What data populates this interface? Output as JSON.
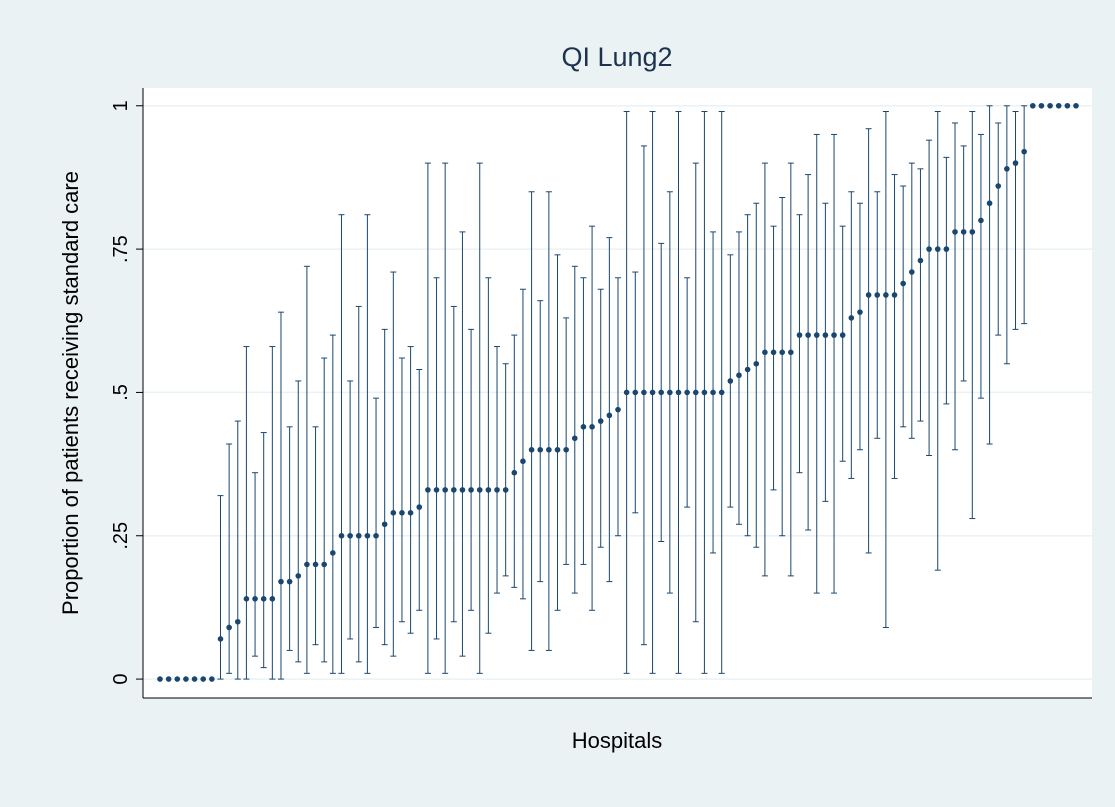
{
  "chart_data": {
    "type": "errorbar",
    "title": "QI Lung2",
    "x_label": "Hospitals",
    "y_label": "Proportion of patients receiving standard care",
    "color": "#1a476f",
    "grid": true,
    "ylim": [
      -0.033,
      1.031
    ],
    "yticks": [
      0,
      {
        "value": 0.25,
        "label": ".25"
      },
      {
        "value": 0.5,
        "label": ".5"
      },
      {
        "value": 0.75,
        "label": ".75"
      },
      1
    ],
    "values": [
      0,
      0,
      0,
      0,
      0,
      0,
      0,
      0.07,
      0.09,
      0.1,
      0.14,
      0.14,
      0.14,
      0.14,
      0.17,
      0.17,
      0.18,
      0.2,
      0.2,
      0.2,
      0.22,
      0.25,
      0.25,
      0.25,
      0.25,
      0.25,
      0.27,
      0.29,
      0.29,
      0.29,
      0.3,
      0.33,
      0.33,
      0.33,
      0.33,
      0.33,
      0.33,
      0.33,
      0.33,
      0.33,
      0.33,
      0.36,
      0.38,
      0.4,
      0.4,
      0.4,
      0.4,
      0.4,
      0.42,
      0.44,
      0.44,
      0.45,
      0.46,
      0.47,
      0.5,
      0.5,
      0.5,
      0.5,
      0.5,
      0.5,
      0.5,
      0.5,
      0.5,
      0.5,
      0.5,
      0.5,
      0.52,
      0.53,
      0.54,
      0.55,
      0.57,
      0.57,
      0.57,
      0.57,
      0.6,
      0.6,
      0.6,
      0.6,
      0.6,
      0.6,
      0.63,
      0.64,
      0.67,
      0.67,
      0.67,
      0.67,
      0.69,
      0.71,
      0.73,
      0.75,
      0.75,
      0.75,
      0.78,
      0.78,
      0.78,
      0.8,
      0.83,
      0.86,
      0.89,
      0.9,
      0.92,
      1,
      1,
      1,
      1,
      1,
      1
    ],
    "lower": [
      null,
      null,
      null,
      null,
      null,
      null,
      null,
      0,
      0.01,
      0,
      0,
      0.04,
      0.02,
      0,
      0,
      0.05,
      0.03,
      0.01,
      0.06,
      0.03,
      0.01,
      0.01,
      0.07,
      0.03,
      0.01,
      0.09,
      0.06,
      0.04,
      0.1,
      0.08,
      0.12,
      0.01,
      0.07,
      0.01,
      0.1,
      0.04,
      0.12,
      0.01,
      0.08,
      0.15,
      0.18,
      0.16,
      0.14,
      0.05,
      0.17,
      0.05,
      0.12,
      0.2,
      0.15,
      0.2,
      0.12,
      0.23,
      0.17,
      0.25,
      0.01,
      0.29,
      0.06,
      0.01,
      0.24,
      0.15,
      0.01,
      0.3,
      0.1,
      0.01,
      0.22,
      0.01,
      0.3,
      0.27,
      0.25,
      0.23,
      0.18,
      0.33,
      0.25,
      0.18,
      0.36,
      0.26,
      0.15,
      0.31,
      0.15,
      0.38,
      0.35,
      0.4,
      0.22,
      0.42,
      0.09,
      0.35,
      0.44,
      0.42,
      0.45,
      0.39,
      0.19,
      0.48,
      0.4,
      0.52,
      0.28,
      0.49,
      0.41,
      0.6,
      0.55,
      0.61,
      0.62,
      null,
      null,
      null,
      null,
      null,
      null
    ],
    "upper": [
      null,
      null,
      null,
      null,
      null,
      null,
      null,
      0.32,
      0.41,
      0.45,
      0.58,
      0.36,
      0.43,
      0.58,
      0.64,
      0.44,
      0.52,
      0.72,
      0.44,
      0.56,
      0.6,
      0.81,
      0.52,
      0.65,
      0.81,
      0.49,
      0.61,
      0.71,
      0.56,
      0.58,
      0.54,
      0.9,
      0.7,
      0.9,
      0.65,
      0.78,
      0.61,
      0.9,
      0.7,
      0.58,
      0.55,
      0.6,
      0.68,
      0.85,
      0.66,
      0.85,
      0.74,
      0.63,
      0.72,
      0.7,
      0.79,
      0.68,
      0.77,
      0.7,
      0.99,
      0.71,
      0.93,
      0.99,
      0.76,
      0.85,
      0.99,
      0.7,
      0.9,
      0.99,
      0.78,
      0.99,
      0.74,
      0.78,
      0.81,
      0.83,
      0.9,
      0.79,
      0.84,
      0.9,
      0.81,
      0.88,
      0.95,
      0.83,
      0.95,
      0.79,
      0.85,
      0.83,
      0.96,
      0.85,
      0.99,
      0.88,
      0.86,
      0.9,
      0.89,
      0.94,
      0.99,
      0.91,
      0.97,
      0.93,
      0.99,
      0.95,
      1.0,
      0.97,
      1.0,
      0.99,
      1.0,
      null,
      null,
      null,
      null,
      null,
      null
    ]
  }
}
